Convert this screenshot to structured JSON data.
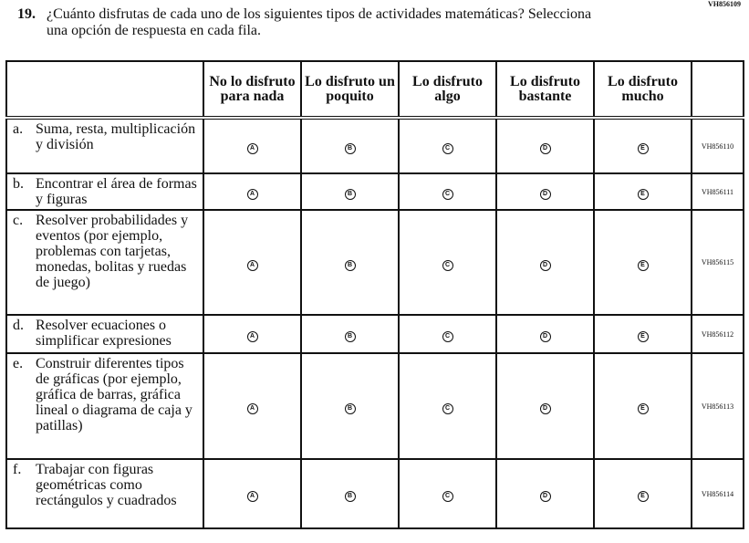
{
  "question_id": "VH856109",
  "question_number": "19.",
  "question_text": "¿Cuánto disfrutas de cada uno de los siguientes tipos de actividades matemáticas? Selecciona una opción de respuesta en cada fila.",
  "columns": [
    "No lo disfruto para nada",
    "Lo disfruto un poquito",
    "Lo disfruto algo",
    "Lo disfruto bastante",
    "Lo disfruto mucho"
  ],
  "options": [
    "A",
    "B",
    "C",
    "D",
    "E"
  ],
  "rows": [
    {
      "letter": "a.",
      "label": "Suma, resta, multiplicación y división",
      "code": "VH856110"
    },
    {
      "letter": "b.",
      "label": "Encontrar el área de formas y figuras",
      "code": "VH856111"
    },
    {
      "letter": "c.",
      "label": "Resolver probabilidades y eventos (por ejemplo, problemas con tarjetas, monedas, bolitas y ruedas de juego)",
      "code": "VH856115"
    },
    {
      "letter": "d.",
      "label": "Resolver ecuaciones o simplificar expresiones",
      "code": "VH856112"
    },
    {
      "letter": "e.",
      "label": "Construir diferentes tipos de gráficas (por ejemplo, gráfica de barras, gráfica lineal o diagrama de caja y patillas)",
      "code": "VH856113"
    },
    {
      "letter": "f.",
      "label": "Trabajar con figuras geométricas como rectángulos y cuadrados",
      "code": "VH856114"
    }
  ]
}
